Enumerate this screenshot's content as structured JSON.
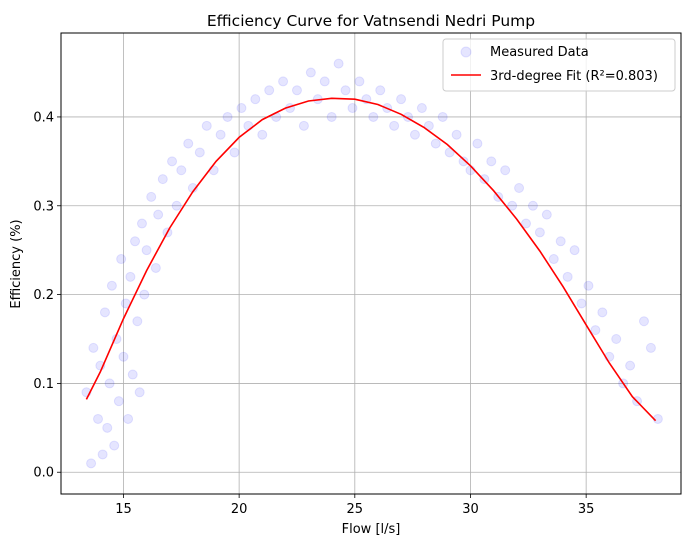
{
  "chart_data": {
    "type": "scatter",
    "title": "Efficiency Curve for Vatnsendi Nedri Pump",
    "xlabel": "Flow [l/s]",
    "ylabel": "Efficiency (%)",
    "xlim": [
      12.3,
      39.1
    ],
    "ylim": [
      -0.0245,
      0.4945
    ],
    "xticks": [
      15,
      20,
      25,
      30,
      35
    ],
    "yticks": [
      0.0,
      0.1,
      0.2,
      0.3,
      0.4
    ],
    "xtick_labels": [
      "15",
      "20",
      "25",
      "30",
      "35"
    ],
    "ytick_labels": [
      "0.0",
      "0.1",
      "0.2",
      "0.3",
      "0.4"
    ],
    "grid": true,
    "legend_position": "top-right",
    "series": [
      {
        "name": "Measured Data",
        "kind": "scatter",
        "color": "#0000ff",
        "opacity": 0.1,
        "x": [
          13.4,
          13.6,
          13.7,
          13.9,
          14.0,
          14.1,
          14.2,
          14.3,
          14.4,
          14.5,
          14.6,
          14.7,
          14.8,
          14.9,
          15.0,
          15.1,
          15.2,
          15.3,
          15.4,
          15.5,
          15.6,
          15.7,
          15.8,
          15.9,
          16.0,
          16.2,
          16.4,
          16.5,
          16.7,
          16.9,
          17.1,
          17.3,
          17.5,
          17.8,
          18.0,
          18.3,
          18.6,
          18.9,
          19.2,
          19.5,
          19.8,
          20.1,
          20.4,
          20.7,
          21.0,
          21.3,
          21.6,
          21.9,
          22.2,
          22.5,
          22.8,
          23.1,
          23.4,
          23.7,
          24.0,
          24.3,
          24.6,
          24.9,
          25.2,
          25.5,
          25.8,
          26.1,
          26.4,
          26.7,
          27.0,
          27.3,
          27.6,
          27.9,
          28.2,
          28.5,
          28.8,
          29.1,
          29.4,
          29.7,
          30.0,
          30.3,
          30.6,
          30.9,
          31.2,
          31.5,
          31.8,
          32.1,
          32.4,
          32.7,
          33.0,
          33.3,
          33.6,
          33.9,
          34.2,
          34.5,
          34.8,
          35.1,
          35.4,
          35.7,
          36.0,
          36.3,
          36.6,
          36.9,
          37.2,
          37.5,
          37.8,
          38.1
        ],
        "y": [
          0.09,
          0.01,
          0.14,
          0.06,
          0.12,
          0.02,
          0.18,
          0.05,
          0.1,
          0.21,
          0.03,
          0.15,
          0.08,
          0.24,
          0.13,
          0.19,
          0.06,
          0.22,
          0.11,
          0.26,
          0.17,
          0.09,
          0.28,
          0.2,
          0.25,
          0.31,
          0.23,
          0.29,
          0.33,
          0.27,
          0.35,
          0.3,
          0.34,
          0.37,
          0.32,
          0.36,
          0.39,
          0.34,
          0.38,
          0.4,
          0.36,
          0.41,
          0.39,
          0.42,
          0.38,
          0.43,
          0.4,
          0.44,
          0.41,
          0.43,
          0.39,
          0.45,
          0.42,
          0.44,
          0.4,
          0.46,
          0.43,
          0.41,
          0.44,
          0.42,
          0.4,
          0.43,
          0.41,
          0.39,
          0.42,
          0.4,
          0.38,
          0.41,
          0.39,
          0.37,
          0.4,
          0.36,
          0.38,
          0.35,
          0.34,
          0.37,
          0.33,
          0.35,
          0.31,
          0.34,
          0.3,
          0.32,
          0.28,
          0.3,
          0.27,
          0.29,
          0.24,
          0.26,
          0.22,
          0.25,
          0.19,
          0.21,
          0.16,
          0.18,
          0.13,
          0.15,
          0.1,
          0.12,
          0.08,
          0.17,
          0.14,
          0.06
        ]
      },
      {
        "name": "3rd-degree Fit (R²=0.803)",
        "kind": "line",
        "color": "#ff0000",
        "x": [
          13.4,
          14.0,
          15.0,
          16.0,
          17.0,
          18.0,
          19.0,
          20.0,
          21.0,
          22.0,
          23.0,
          24.0,
          25.0,
          26.0,
          27.0,
          28.0,
          29.0,
          30.0,
          31.0,
          32.0,
          33.0,
          34.0,
          35.0,
          36.0,
          37.0,
          38.0
        ],
        "y": [
          0.082,
          0.113,
          0.173,
          0.227,
          0.275,
          0.316,
          0.35,
          0.377,
          0.397,
          0.41,
          0.418,
          0.421,
          0.42,
          0.414,
          0.403,
          0.388,
          0.369,
          0.345,
          0.317,
          0.285,
          0.249,
          0.209,
          0.166,
          0.123,
          0.085,
          0.058
        ]
      }
    ]
  }
}
